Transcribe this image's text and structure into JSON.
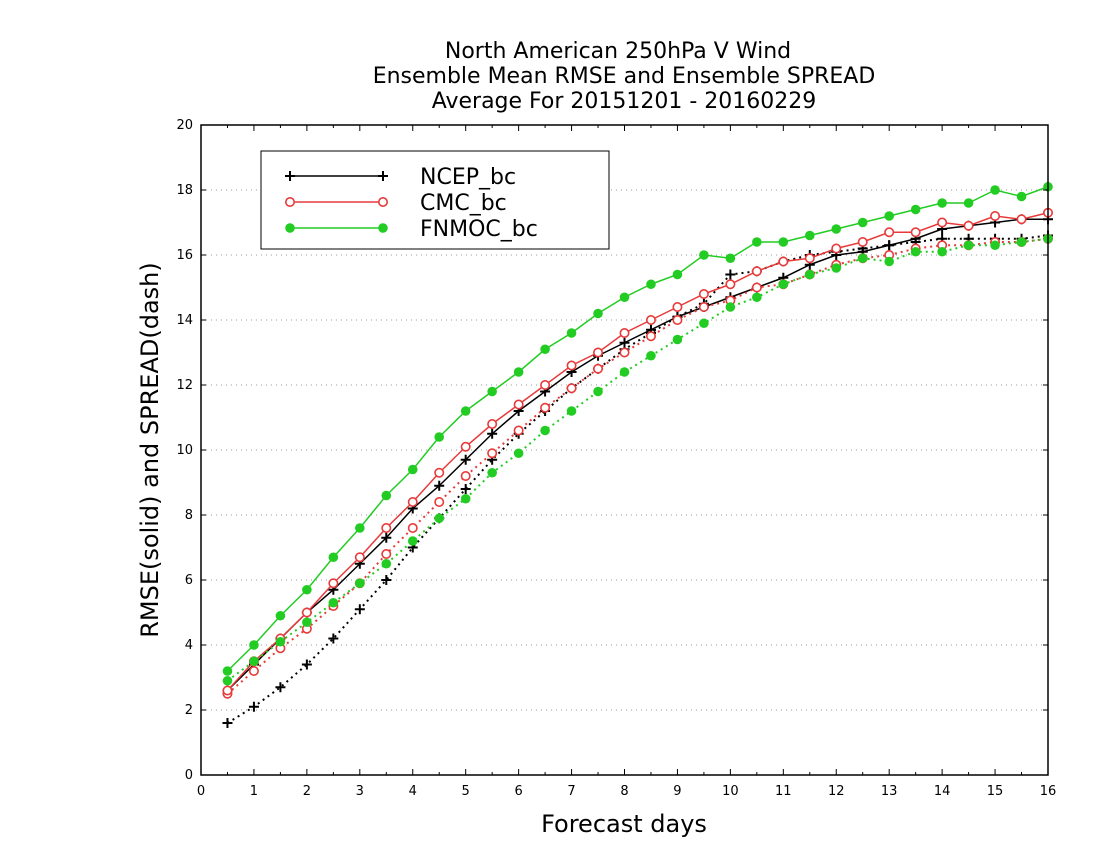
{
  "chart_data": {
    "type": "line",
    "title_lines": [
      "North American 250hPa V Wind",
      "Ensemble Mean RMSE and Ensemble SPREAD",
      "Average For 20151201 - 20160229"
    ],
    "xlabel": "Forecast days",
    "ylabel": "RMSE(solid) and SPREAD(dash)",
    "xlim": [
      0,
      16
    ],
    "ylim": [
      0,
      20
    ],
    "x_ticks": [
      0,
      1,
      2,
      3,
      4,
      5,
      6,
      7,
      8,
      9,
      10,
      11,
      12,
      13,
      14,
      15,
      16
    ],
    "y_ticks": [
      0,
      2,
      4,
      6,
      8,
      10,
      12,
      14,
      16,
      18,
      20
    ],
    "grid": "horizontal dotted",
    "legend_position": "top-left",
    "x": [
      0.5,
      1,
      1.5,
      2,
      2.5,
      3,
      3.5,
      4,
      4.5,
      5,
      5.5,
      6,
      6.5,
      7,
      7.5,
      8,
      8.5,
      9,
      9.5,
      10,
      10.5,
      11,
      11.5,
      12,
      12.5,
      13,
      13.5,
      14,
      14.5,
      15,
      15.5,
      16
    ],
    "series": [
      {
        "name": "NCEP_bc",
        "color": "#000000",
        "marker": "plus",
        "rmse": [
          2.6,
          3.4,
          4.2,
          5.0,
          5.7,
          6.5,
          7.3,
          8.2,
          8.9,
          9.7,
          10.5,
          11.2,
          11.8,
          12.4,
          12.9,
          13.3,
          13.7,
          14.1,
          14.4,
          14.7,
          15.0,
          15.3,
          15.7,
          16.0,
          16.1,
          16.3,
          16.5,
          16.8,
          16.9,
          17.0,
          17.1,
          17.1
        ],
        "spread": [
          1.6,
          2.1,
          2.7,
          3.4,
          4.2,
          5.1,
          6.0,
          7.0,
          7.9,
          8.8,
          9.7,
          10.5,
          11.2,
          11.9,
          12.5,
          13.1,
          13.6,
          14.1,
          14.5,
          15.4,
          15.5,
          15.8,
          16.0,
          16.1,
          16.2,
          16.3,
          16.4,
          16.5,
          16.5,
          16.5,
          16.5,
          16.6
        ]
      },
      {
        "name": "CMC_bc",
        "color": "#e83a3a",
        "marker": "open-circle",
        "rmse": [
          2.6,
          3.5,
          4.2,
          5.0,
          5.9,
          6.7,
          7.6,
          8.4,
          9.3,
          10.1,
          10.8,
          11.4,
          12.0,
          12.6,
          13.0,
          13.6,
          14.0,
          14.4,
          14.8,
          15.1,
          15.5,
          15.8,
          15.9,
          16.2,
          16.4,
          16.7,
          16.7,
          17.0,
          16.9,
          17.2,
          17.1,
          17.3
        ],
        "spread": [
          2.5,
          3.2,
          3.9,
          4.5,
          5.2,
          5.9,
          6.8,
          7.6,
          8.4,
          9.2,
          9.9,
          10.6,
          11.3,
          11.9,
          12.5,
          13.0,
          13.5,
          14.0,
          14.4,
          14.6,
          15.0,
          15.1,
          15.4,
          15.7,
          15.9,
          16.0,
          16.2,
          16.3,
          16.3,
          16.4,
          16.4,
          16.5
        ]
      },
      {
        "name": "FNMOC_bc",
        "color": "#22cc22",
        "marker": "filled-circle",
        "rmse": [
          3.2,
          4.0,
          4.9,
          5.7,
          6.7,
          7.6,
          8.6,
          9.4,
          10.4,
          11.2,
          11.8,
          12.4,
          13.1,
          13.6,
          14.2,
          14.7,
          15.1,
          15.4,
          16.0,
          15.9,
          16.4,
          16.4,
          16.6,
          16.8,
          17.0,
          17.2,
          17.4,
          17.6,
          17.6,
          18.0,
          17.8,
          18.1
        ],
        "spread": [
          2.9,
          3.5,
          4.1,
          4.7,
          5.3,
          5.9,
          6.5,
          7.2,
          7.9,
          8.5,
          9.3,
          9.9,
          10.6,
          11.2,
          11.8,
          12.4,
          12.9,
          13.4,
          13.9,
          14.4,
          14.7,
          15.1,
          15.4,
          15.6,
          15.9,
          15.8,
          16.1,
          16.1,
          16.3,
          16.3,
          16.4,
          16.5
        ]
      }
    ]
  }
}
